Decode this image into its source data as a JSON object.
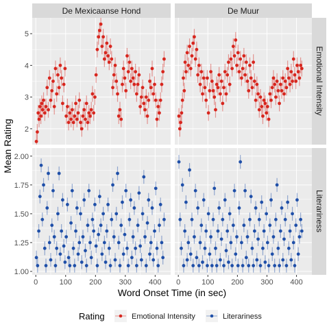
{
  "chart_data": {
    "type": "scatter",
    "x_axis_label": "Word Onset Time (in sec)",
    "y_axis_label": "Mean Rating",
    "x_ticks": [
      0,
      100,
      200,
      300,
      400
    ],
    "xlim": [
      -12,
      452
    ],
    "facet_columns": [
      "De Mexicaanse Hond",
      "De Muur"
    ],
    "facet_rows": [
      "Emotional Intensity",
      "Literariness"
    ],
    "rows": [
      {
        "name": "Emotional Intensity",
        "ylim": [
          1.5,
          5.5
        ],
        "y_ticks": [
          2,
          3,
          4,
          5
        ],
        "y_tick_labels": [
          "2",
          "3",
          "4",
          "5"
        ]
      },
      {
        "name": "Literariness",
        "ylim": [
          0.97,
          2.07
        ],
        "y_ticks": [
          1.0,
          1.25,
          1.5,
          1.75,
          2.0
        ],
        "y_tick_labels": [
          "1.00",
          "1.25",
          "1.50",
          "1.75",
          "2.00"
        ]
      }
    ],
    "legend": {
      "title": "Rating",
      "position": "bottom",
      "items": [
        {
          "label": "Emotional Intensity",
          "color": "#d7261e"
        },
        {
          "label": "Literariness",
          "color": "#1f4fa8"
        }
      ]
    },
    "panels": [
      {
        "column": "De Mexicaanse Hond",
        "row": "Emotional Intensity",
        "color": "#d7261e",
        "error": 0.25,
        "x": [
          2,
          5,
          8,
          11,
          14,
          17,
          20,
          23,
          26,
          30,
          34,
          38,
          42,
          46,
          50,
          54,
          58,
          62,
          66,
          70,
          74,
          78,
          82,
          86,
          90,
          94,
          98,
          102,
          106,
          110,
          114,
          118,
          122,
          126,
          130,
          134,
          138,
          142,
          146,
          150,
          154,
          158,
          162,
          166,
          170,
          174,
          178,
          182,
          186,
          190,
          194,
          198,
          202,
          206,
          210,
          214,
          218,
          222,
          226,
          230,
          234,
          238,
          242,
          246,
          250,
          254,
          258,
          262,
          266,
          270,
          274,
          278,
          282,
          286,
          290,
          294,
          298,
          302,
          306,
          310,
          314,
          318,
          322,
          326,
          330,
          334,
          338,
          342,
          346,
          350,
          354,
          358,
          362,
          366,
          370,
          374,
          378,
          382,
          386,
          390,
          394,
          398,
          402,
          406,
          410,
          414,
          418,
          422,
          426,
          430
        ],
        "y": [
          1.6,
          1.9,
          2.5,
          2.3,
          2.7,
          2.4,
          2.8,
          2.6,
          2.9,
          2.5,
          2.7,
          3.3,
          2.6,
          3.6,
          2.9,
          3.2,
          3.5,
          2.7,
          3.9,
          3.1,
          3.7,
          3.3,
          4.0,
          3.6,
          2.8,
          3.4,
          3.9,
          2.4,
          2.7,
          2.2,
          2.5,
          2.3,
          2.6,
          2.2,
          2.4,
          2.8,
          2.3,
          2.5,
          2.9,
          2.2,
          2.0,
          2.4,
          2.6,
          2.3,
          2.8,
          2.2,
          2.5,
          2.4,
          2.6,
          3.1,
          2.5,
          3.0,
          3.7,
          4.5,
          4.9,
          5.1,
          5.3,
          4.6,
          4.9,
          4.2,
          4.4,
          4.7,
          4.3,
          4.1,
          4.6,
          4.2,
          3.3,
          3.7,
          4.0,
          3.5,
          3.1,
          2.4,
          2.6,
          2.3,
          3.4,
          3.9,
          3.6,
          3.2,
          4.3,
          3.8,
          4.1,
          3.5,
          3.9,
          3.6,
          3.4,
          3.8,
          3.1,
          3.4,
          3.7,
          2.7,
          3.0,
          3.3,
          2.8,
          2.6,
          3.0,
          2.4,
          2.9,
          3.5,
          3.3,
          3.9,
          3.1,
          3.4,
          2.9,
          2.3,
          2.7,
          2.5,
          2.9,
          3.4,
          3.8,
          4.2
        ]
      },
      {
        "column": "De Muur",
        "row": "Emotional Intensity",
        "color": "#d7261e",
        "error": 0.25,
        "x": [
          2,
          5,
          8,
          11,
          14,
          17,
          20,
          23,
          26,
          30,
          34,
          38,
          42,
          46,
          50,
          54,
          58,
          62,
          66,
          70,
          74,
          78,
          82,
          86,
          90,
          94,
          98,
          102,
          106,
          110,
          114,
          118,
          122,
          126,
          130,
          134,
          138,
          142,
          146,
          150,
          154,
          158,
          162,
          166,
          170,
          174,
          178,
          182,
          186,
          190,
          194,
          198,
          202,
          206,
          210,
          214,
          218,
          222,
          226,
          230,
          234,
          238,
          242,
          246,
          250,
          254,
          258,
          262,
          266,
          270,
          274,
          278,
          282,
          286,
          290,
          294,
          298,
          302,
          306,
          310,
          314,
          318,
          322,
          326,
          330,
          334,
          338,
          342,
          346,
          350,
          354,
          358,
          362,
          366,
          370,
          374,
          378,
          382,
          386,
          390,
          394,
          398,
          402,
          406,
          410,
          414,
          418
        ],
        "y": [
          2.4,
          2.0,
          2.2,
          2.5,
          2.9,
          3.6,
          3.2,
          4.1,
          3.8,
          4.4,
          4.0,
          4.6,
          3.9,
          4.3,
          4.7,
          4.9,
          4.2,
          4.5,
          3.7,
          4.0,
          3.4,
          3.8,
          3.1,
          3.6,
          3.3,
          2.9,
          3.6,
          2.5,
          3.2,
          3.8,
          3.5,
          3.2,
          3.0,
          2.6,
          3.4,
          3.3,
          3.7,
          3.1,
          3.5,
          2.8,
          3.3,
          3.8,
          3.1,
          3.7,
          4.1,
          3.4,
          4.2,
          3.9,
          4.6,
          4.3,
          4.8,
          4.0,
          4.4,
          3.8,
          4.2,
          3.6,
          3.9,
          4.3,
          3.7,
          4.1,
          3.5,
          3.2,
          4.0,
          3.6,
          3.3,
          4.1,
          3.5,
          2.9,
          3.4,
          3.1,
          2.6,
          3.0,
          2.7,
          2.4,
          2.9,
          2.8,
          2.5,
          2.7,
          2.3,
          3.1,
          2.9,
          3.3,
          3.6,
          3.4,
          3.0,
          3.5,
          3.2,
          2.8,
          3.4,
          3.2,
          3.6,
          3.1,
          3.5,
          3.3,
          3.9,
          3.6,
          3.4,
          3.8,
          3.5,
          4.2,
          3.7,
          3.5,
          4.0,
          3.8,
          3.6,
          4.0,
          3.9
        ]
      },
      {
        "column": "De Mexicaanse Hond",
        "row": "Literariness",
        "color": "#1f4fa8",
        "error": 0.06,
        "x": [
          2,
          6,
          10,
          14,
          18,
          22,
          26,
          30,
          34,
          38,
          42,
          46,
          50,
          54,
          58,
          62,
          66,
          70,
          74,
          78,
          82,
          86,
          90,
          94,
          98,
          102,
          106,
          110,
          114,
          118,
          122,
          126,
          130,
          134,
          138,
          142,
          146,
          150,
          154,
          158,
          162,
          166,
          170,
          174,
          178,
          182,
          186,
          190,
          194,
          198,
          202,
          206,
          210,
          214,
          218,
          222,
          226,
          230,
          234,
          238,
          242,
          246,
          250,
          254,
          258,
          262,
          266,
          270,
          274,
          278,
          282,
          286,
          290,
          294,
          298,
          302,
          306,
          310,
          314,
          318,
          322,
          326,
          330,
          334,
          338,
          342,
          346,
          350,
          354,
          358,
          362,
          366,
          370,
          374,
          378,
          382,
          386,
          390,
          394,
          398,
          402,
          406,
          410,
          414,
          418,
          422,
          426,
          430
        ],
        "y": [
          1.12,
          1.05,
          1.35,
          1.65,
          1.92,
          1.45,
          1.75,
          1.2,
          1.05,
          1.55,
          1.85,
          1.25,
          1.1,
          1.4,
          1.7,
          1.3,
          1.05,
          1.2,
          1.5,
          1.85,
          1.15,
          1.35,
          1.62,
          1.22,
          1.08,
          1.3,
          1.58,
          1.12,
          1.05,
          1.42,
          1.7,
          1.2,
          1.05,
          1.35,
          1.55,
          1.15,
          1.25,
          1.5,
          1.08,
          1.3,
          1.62,
          1.18,
          1.05,
          1.4,
          1.7,
          1.25,
          1.12,
          1.45,
          1.35,
          1.58,
          1.22,
          1.05,
          1.32,
          1.65,
          1.4,
          1.15,
          1.5,
          1.25,
          1.08,
          1.35,
          1.58,
          1.2,
          1.05,
          1.45,
          1.75,
          1.3,
          1.1,
          1.5,
          1.85,
          1.25,
          1.05,
          1.4,
          1.6,
          1.15,
          1.32,
          1.7,
          1.2,
          1.05,
          1.45,
          1.62,
          1.12,
          1.3,
          1.55,
          1.2,
          1.05,
          1.4,
          1.68,
          1.22,
          1.1,
          1.5,
          1.82,
          1.3,
          1.05,
          1.42,
          1.62,
          1.15,
          1.25,
          1.55,
          1.1,
          1.35,
          1.72,
          1.2,
          1.05,
          1.4,
          1.58,
          1.25,
          1.12,
          1.45
        ]
      },
      {
        "column": "De Muur",
        "row": "Literariness",
        "color": "#1f4fa8",
        "error": 0.06,
        "x": [
          2,
          6,
          10,
          14,
          18,
          22,
          26,
          30,
          34,
          38,
          42,
          46,
          50,
          54,
          58,
          62,
          66,
          70,
          74,
          78,
          82,
          86,
          90,
          94,
          98,
          102,
          106,
          110,
          114,
          118,
          122,
          126,
          130,
          134,
          138,
          142,
          146,
          150,
          154,
          158,
          162,
          166,
          170,
          174,
          178,
          182,
          186,
          190,
          194,
          198,
          202,
          206,
          210,
          214,
          218,
          222,
          226,
          230,
          234,
          238,
          242,
          246,
          250,
          254,
          258,
          262,
          266,
          270,
          274,
          278,
          282,
          286,
          290,
          294,
          298,
          302,
          306,
          310,
          314,
          318,
          322,
          326,
          330,
          334,
          338,
          342,
          346,
          350,
          354,
          358,
          362,
          366,
          370,
          374,
          378,
          382,
          386,
          390,
          394,
          398,
          402,
          406,
          410,
          414,
          418
        ],
        "y": [
          1.95,
          1.45,
          1.2,
          1.75,
          1.05,
          1.35,
          1.6,
          1.1,
          1.25,
          1.88,
          1.15,
          1.45,
          1.05,
          1.3,
          1.7,
          1.12,
          1.55,
          1.05,
          1.25,
          1.4,
          1.08,
          1.62,
          1.2,
          1.35,
          1.05,
          1.5,
          1.15,
          1.3,
          1.05,
          1.45,
          1.72,
          1.2,
          1.05,
          1.35,
          1.55,
          1.1,
          1.28,
          1.45,
          1.05,
          1.62,
          1.18,
          1.35,
          1.08,
          1.5,
          1.25,
          1.05,
          1.4,
          1.7,
          1.15,
          1.3,
          1.05,
          1.55,
          1.95,
          1.25,
          1.05,
          1.4,
          1.7,
          1.12,
          1.3,
          1.05,
          1.45,
          1.65,
          1.2,
          1.05,
          1.35,
          1.55,
          1.1,
          1.28,
          1.45,
          1.05,
          1.6,
          1.2,
          1.35,
          1.08,
          1.5,
          1.25,
          1.05,
          1.4,
          1.62,
          1.15,
          1.3,
          1.05,
          1.45,
          1.75,
          1.2,
          1.05,
          1.35,
          1.55,
          1.1,
          1.28,
          1.45,
          1.05,
          1.6,
          1.2,
          1.35,
          1.1,
          1.5,
          1.25,
          1.05,
          1.4,
          1.62,
          1.15,
          1.3,
          1.45,
          1.35
        ]
      }
    ]
  }
}
